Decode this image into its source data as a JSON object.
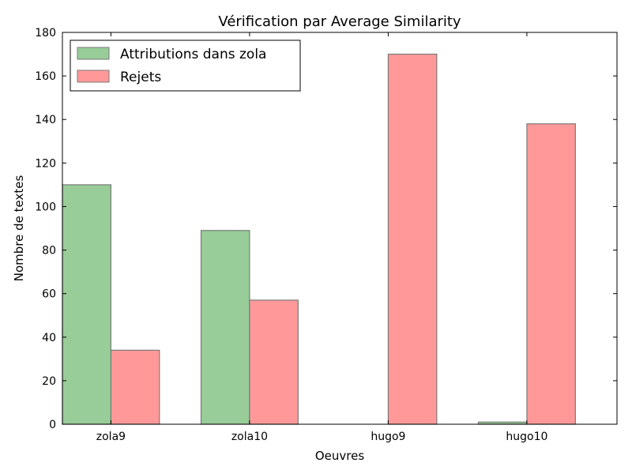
{
  "chart_data": {
    "type": "bar",
    "title": "Vérification par Average Similarity",
    "xlabel": "Oeuvres",
    "ylabel": "Nombre de textes",
    "categories": [
      "zola9",
      "zola10",
      "hugo9",
      "hugo10"
    ],
    "ylim": [
      0,
      180
    ],
    "yticks": [
      0,
      20,
      40,
      60,
      80,
      100,
      120,
      140,
      160,
      180
    ],
    "grid": false,
    "legend_position": "top-left",
    "series": [
      {
        "name": "Attributions dans zola",
        "color": "#98cc98",
        "values": [
          110,
          89,
          0,
          1
        ]
      },
      {
        "name": "Rejets",
        "color": "#ff9999",
        "values": [
          34,
          57,
          170,
          138
        ]
      }
    ]
  }
}
